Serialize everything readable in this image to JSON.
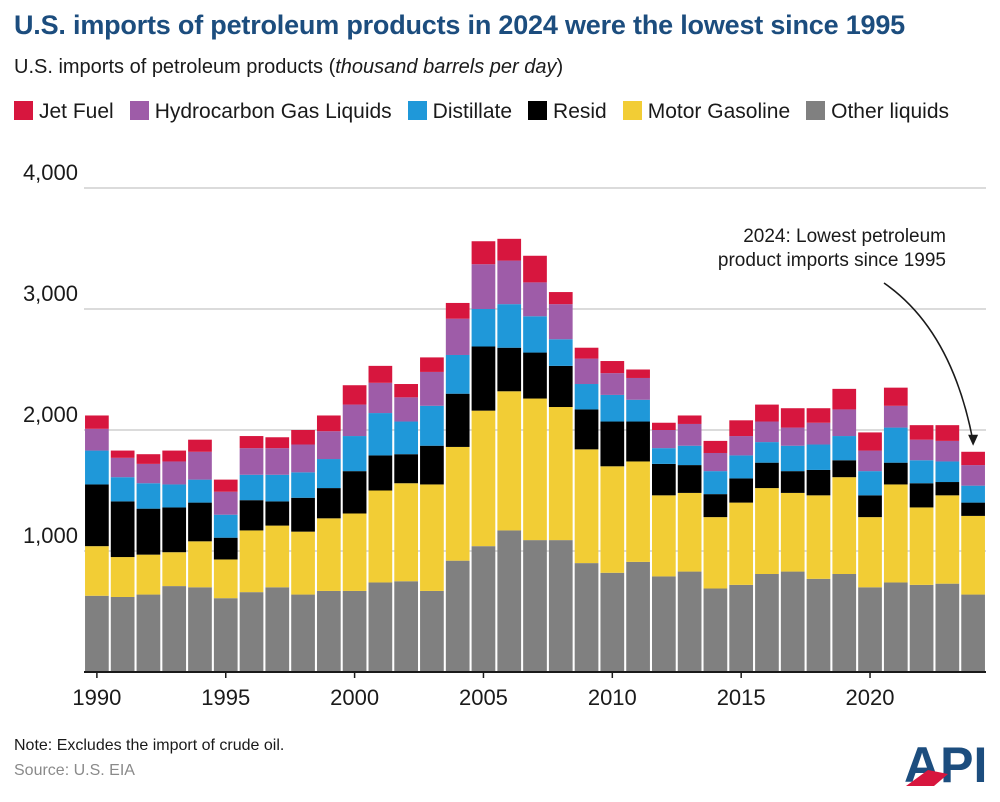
{
  "title": "U.S. imports of petroleum products in 2024 were the lowest since 1995",
  "subtitle_main": "U.S. imports of petroleum products (",
  "subtitle_unit": "thousand barrels per day",
  "subtitle_end": ")",
  "note": "Note: Excludes the import of crude oil.",
  "source": "Source: U.S. EIA",
  "logo_text": "API",
  "chart_data": {
    "type": "bar",
    "stacked": true,
    "title": "U.S. imports of petroleum products in 2024 were the lowest since 1995",
    "ylabel": "U.S. imports of petroleum products (thousand barrels per day)",
    "xlabel": "",
    "ylim": [
      0,
      4000
    ],
    "yticks": [
      1000,
      2000,
      3000,
      4000
    ],
    "ytick_labels": [
      "1,000",
      "2,000",
      "3,000",
      "4,000"
    ],
    "xtick_labels": [
      "1990",
      "1995",
      "2000",
      "2005",
      "2010",
      "2015",
      "2020"
    ],
    "categories": [
      "1990",
      "1991",
      "1992",
      "1993",
      "1994",
      "1995",
      "1996",
      "1997",
      "1998",
      "1999",
      "2000",
      "2001",
      "2002",
      "2003",
      "2004",
      "2005",
      "2006",
      "2007",
      "2008",
      "2009",
      "2010",
      "2011",
      "2012",
      "2013",
      "2014",
      "2015",
      "2016",
      "2017",
      "2018",
      "2019",
      "2020",
      "2021",
      "2022",
      "2023",
      "2024"
    ],
    "series": [
      {
        "name": "Other liquids",
        "color": "#808080",
        "values": [
          630,
          620,
          640,
          710,
          700,
          610,
          660,
          700,
          640,
          670,
          670,
          740,
          750,
          670,
          920,
          1040,
          1170,
          1090,
          1090,
          900,
          820,
          910,
          790,
          830,
          690,
          720,
          810,
          830,
          770,
          810,
          700,
          740,
          720,
          730,
          640
        ]
      },
      {
        "name": "Motor Gasoline",
        "color": "#f2cd35",
        "values": [
          410,
          330,
          330,
          280,
          380,
          320,
          510,
          510,
          520,
          600,
          640,
          760,
          810,
          880,
          940,
          1120,
          1150,
          1170,
          1100,
          940,
          880,
          830,
          670,
          650,
          590,
          680,
          710,
          650,
          690,
          800,
          580,
          810,
          640,
          730,
          650
        ]
      },
      {
        "name": "Resid",
        "color": "#000000",
        "values": [
          510,
          460,
          380,
          370,
          320,
          180,
          250,
          200,
          280,
          250,
          350,
          290,
          240,
          320,
          440,
          530,
          360,
          380,
          340,
          330,
          370,
          330,
          260,
          230,
          190,
          200,
          210,
          180,
          210,
          140,
          180,
          180,
          200,
          110,
          110
        ]
      },
      {
        "name": "Distillate",
        "color": "#1f98d9",
        "values": [
          280,
          200,
          210,
          190,
          190,
          190,
          210,
          220,
          210,
          240,
          290,
          350,
          270,
          330,
          320,
          310,
          360,
          300,
          220,
          210,
          220,
          180,
          130,
          160,
          190,
          190,
          170,
          210,
          210,
          200,
          200,
          290,
          190,
          170,
          140
        ]
      },
      {
        "name": "Hydrocarbon Gas Liquids",
        "color": "#9e5ca8",
        "values": [
          180,
          160,
          160,
          190,
          230,
          190,
          220,
          220,
          230,
          230,
          260,
          250,
          200,
          280,
          300,
          370,
          360,
          280,
          290,
          210,
          180,
          180,
          150,
          180,
          150,
          160,
          170,
          150,
          180,
          220,
          170,
          180,
          170,
          170,
          170
        ]
      },
      {
        "name": "Jet Fuel",
        "color": "#d7163e",
        "values": [
          110,
          60,
          80,
          90,
          100,
          100,
          100,
          90,
          120,
          130,
          160,
          140,
          110,
          120,
          130,
          190,
          180,
          220,
          100,
          90,
          100,
          70,
          60,
          70,
          100,
          130,
          140,
          160,
          120,
          170,
          150,
          150,
          120,
          130,
          110
        ]
      }
    ],
    "legend": [
      "Jet Fuel",
      "Hydrocarbon Gas Liquids",
      "Distillate",
      "Resid",
      "Motor Gasoline",
      "Other liquids"
    ],
    "legend_position": "top",
    "grid": true,
    "annotations": [
      {
        "text_line1": "2024: Lowest petroleum",
        "text_line2": "product imports since 1995",
        "target": "2024"
      }
    ]
  }
}
